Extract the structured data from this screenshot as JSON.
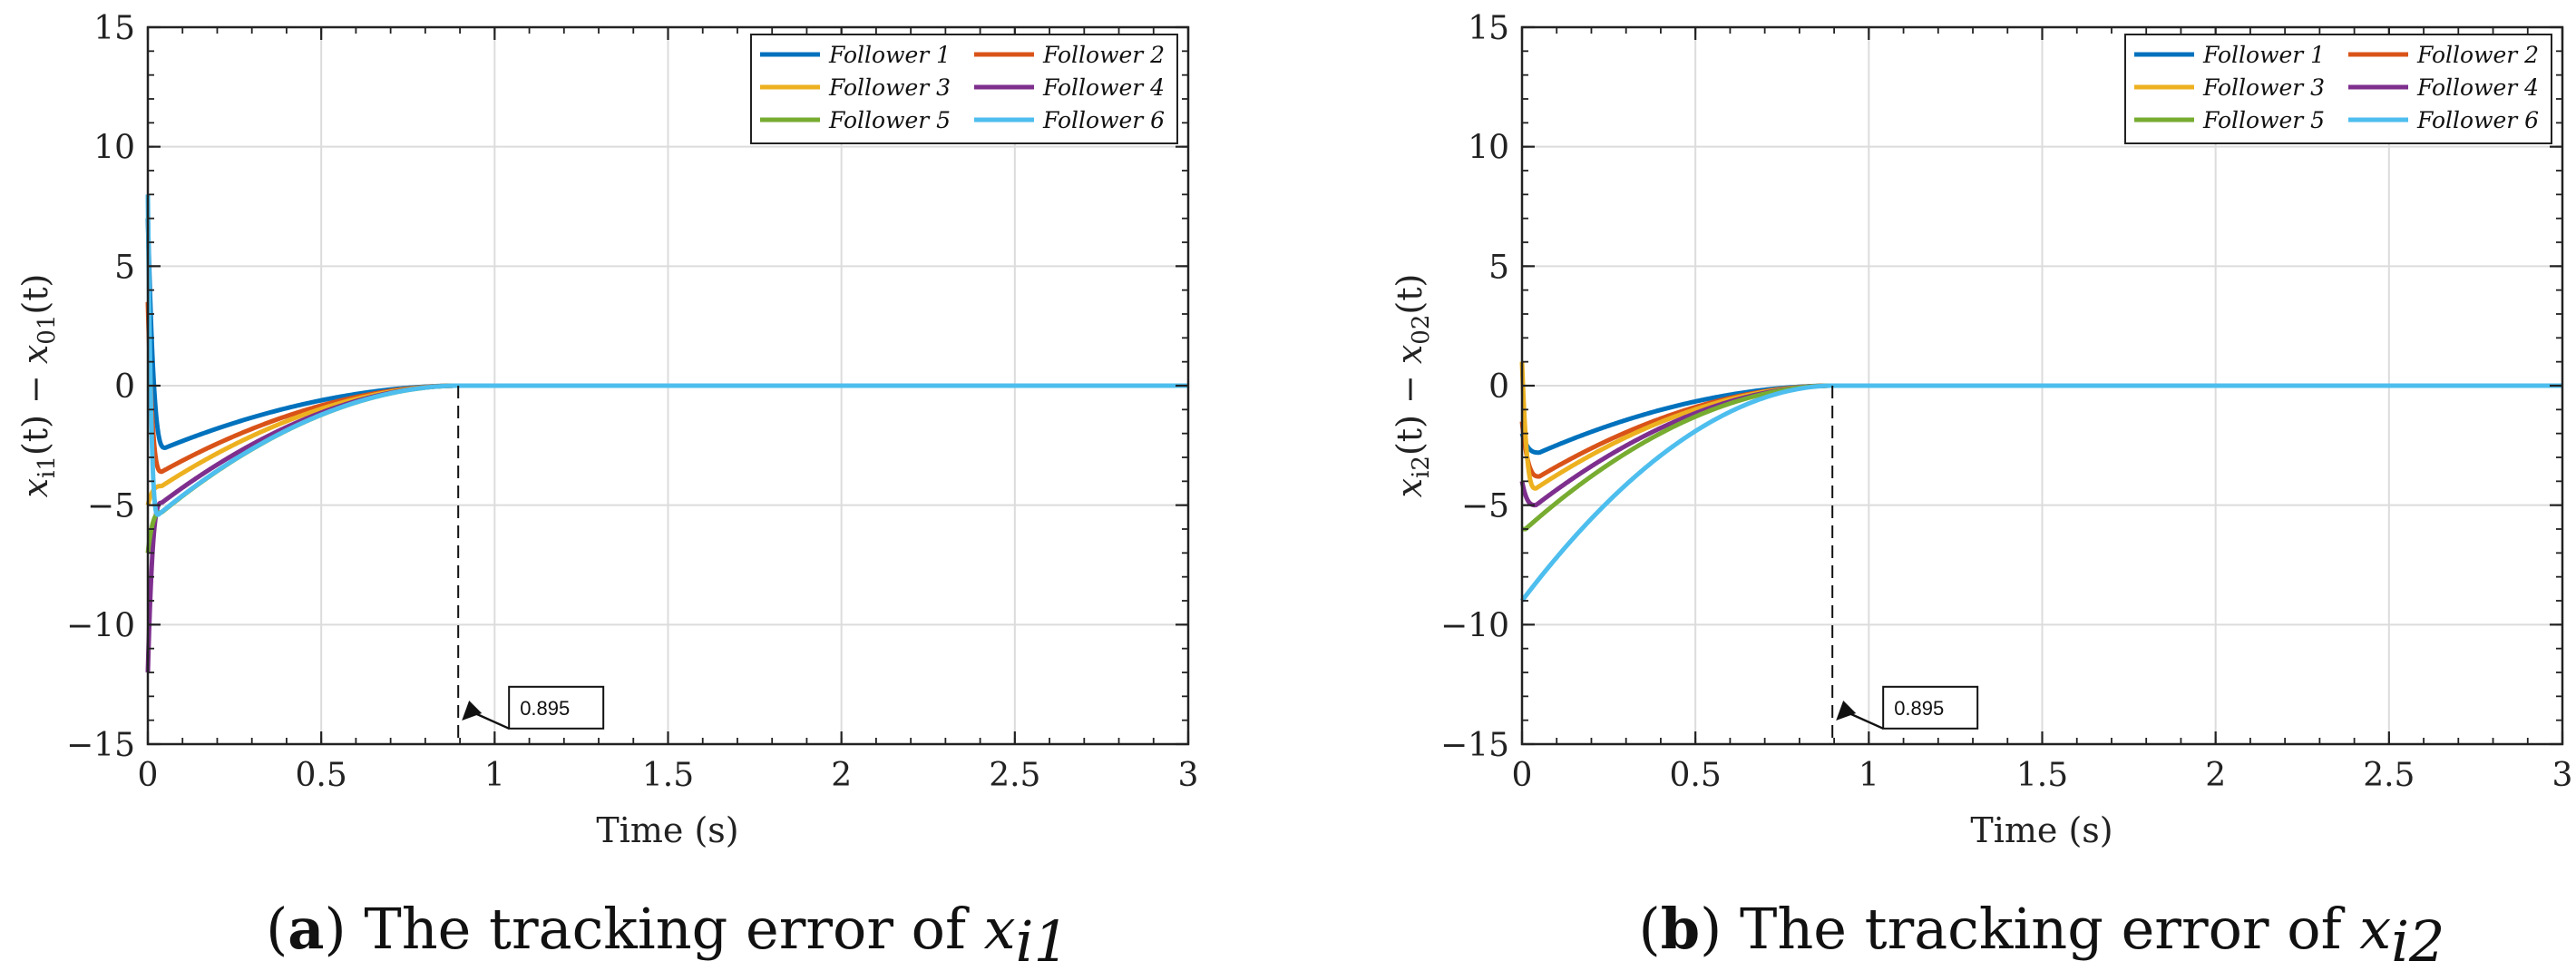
{
  "chart_data": [
    {
      "type": "line",
      "xlabel": "Time (s)",
      "ylabel": "x_i1(t) − x_01(t)",
      "ylabel_parts": {
        "a": "x",
        "a_sub": "i1",
        "b": "(t) − ",
        "c": "x",
        "c_sub": "01",
        "d": "(t)"
      },
      "xlim": [
        0,
        3
      ],
      "ylim": [
        -15,
        15
      ],
      "xticks": [
        0,
        0.5,
        1,
        1.5,
        2,
        2.5,
        3
      ],
      "xtick_labels": [
        "0",
        "0.5",
        "1",
        "1.5",
        "2",
        "2.5",
        "3"
      ],
      "yticks": [
        -15,
        -10,
        -5,
        0,
        5,
        10,
        15
      ],
      "ytick_labels": [
        "−15",
        "−10",
        "−5",
        "0",
        "5",
        "10",
        "15"
      ],
      "grid": true,
      "legend_position": "top-right",
      "annotation": {
        "text": "0.895",
        "x": 0.895
      },
      "series": [
        {
          "name": "Follower 1",
          "color": "#0072BD",
          "y0": 7.0,
          "ymin": -2.6,
          "tmin": 0.05
        },
        {
          "name": "Follower 2",
          "color": "#D95319",
          "y0": 3.5,
          "ymin": -3.6,
          "tmin": 0.04
        },
        {
          "name": "Follower 3",
          "color": "#EDB120",
          "y0": -5.0,
          "ymin": -4.2,
          "tmin": 0.04
        },
        {
          "name": "Follower 4",
          "color": "#7E2F8E",
          "y0": -12.0,
          "ymin": -4.9,
          "tmin": 0.04
        },
        {
          "name": "Follower 5",
          "color": "#77AC30",
          "y0": -7.0,
          "ymin": -5.3,
          "tmin": 0.04
        },
        {
          "name": "Follower 6",
          "color": "#4DBEEE",
          "y0": 8.0,
          "ymin": -5.4,
          "tmin": 0.03
        }
      ],
      "caption": {
        "label": "a",
        "text": "The tracking error of ",
        "var": "x",
        "sub": "i1"
      }
    },
    {
      "type": "line",
      "xlabel": "Time (s)",
      "ylabel": "x_i2(t) − x_02(t)",
      "ylabel_parts": {
        "a": "x",
        "a_sub": "i2",
        "b": "(t) − ",
        "c": "x",
        "c_sub": "02",
        "d": "(t)"
      },
      "xlim": [
        0,
        3
      ],
      "ylim": [
        -15,
        15
      ],
      "xticks": [
        0,
        0.5,
        1,
        1.5,
        2,
        2.5,
        3
      ],
      "xtick_labels": [
        "0",
        "0.5",
        "1",
        "1.5",
        "2",
        "2.5",
        "3"
      ],
      "yticks": [
        -15,
        -10,
        -5,
        0,
        5,
        10,
        15
      ],
      "ytick_labels": [
        "−15",
        "−10",
        "−5",
        "0",
        "5",
        "10",
        "15"
      ],
      "grid": true,
      "legend_position": "top-right",
      "annotation": {
        "text": "0.895",
        "x": 0.895
      },
      "series": [
        {
          "name": "Follower 1",
          "color": "#0072BD",
          "y0": -2.0,
          "ymin": -2.8,
          "tmin": 0.05
        },
        {
          "name": "Follower 2",
          "color": "#D95319",
          "y0": -1.5,
          "ymin": -3.8,
          "tmin": 0.05
        },
        {
          "name": "Follower 3",
          "color": "#EDB120",
          "y0": 1.0,
          "ymin": -4.3,
          "tmin": 0.04
        },
        {
          "name": "Follower 4",
          "color": "#7E2F8E",
          "y0": -4.0,
          "ymin": -5.0,
          "tmin": 0.04
        },
        {
          "name": "Follower 5",
          "color": "#77AC30",
          "y0": -6.0,
          "ymin": -6.0,
          "tmin": 0.01
        },
        {
          "name": "Follower 6",
          "color": "#4DBEEE",
          "y0": -9.0,
          "ymin": -9.0,
          "tmin": 0.0
        }
      ],
      "caption": {
        "label": "b",
        "text": "The tracking error of ",
        "var": "x",
        "sub": "i2"
      }
    }
  ]
}
